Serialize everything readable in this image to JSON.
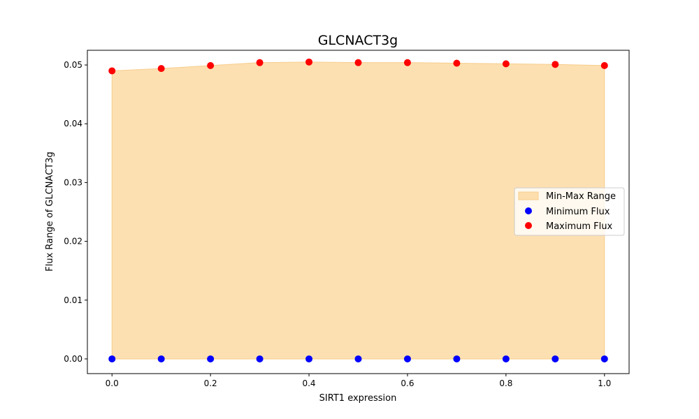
{
  "chart_data": {
    "type": "scatter",
    "title": "GLCNACT3g",
    "xlabel": "SIRT1 expression",
    "ylabel": "Flux Range of GLCNACT3g",
    "x": [
      0.0,
      0.1,
      0.2,
      0.3,
      0.4,
      0.5,
      0.6,
      0.7,
      0.8,
      0.9,
      1.0
    ],
    "xlim": [
      -0.05,
      1.05
    ],
    "ylim": [
      -0.0025,
      0.0525
    ],
    "xticks": [
      0.0,
      0.2,
      0.4,
      0.6,
      0.8,
      1.0
    ],
    "xtick_labels": [
      "0.0",
      "0.2",
      "0.4",
      "0.6",
      "0.8",
      "1.0"
    ],
    "yticks": [
      0.0,
      0.01,
      0.02,
      0.03,
      0.04,
      0.05
    ],
    "ytick_labels": [
      "0.00",
      "0.01",
      "0.02",
      "0.03",
      "0.04",
      "0.05"
    ],
    "grid": false,
    "legend_position": "center-right",
    "fill": {
      "name": "Min-Max Range",
      "lower": [
        0,
        0,
        0,
        0,
        0,
        0,
        0,
        0,
        0,
        0,
        0
      ],
      "upper": [
        0.049,
        0.0494,
        0.0499,
        0.0504,
        0.0505,
        0.0504,
        0.0504,
        0.0503,
        0.0502,
        0.0501,
        0.0499
      ],
      "color": "#fcd697",
      "edge_color": "#f6cd8c"
    },
    "series": [
      {
        "name": "Minimum Flux",
        "color": "#0000ff",
        "values": [
          0,
          0,
          0,
          0,
          0,
          0,
          0,
          0,
          0,
          0,
          0
        ]
      },
      {
        "name": "Maximum Flux",
        "color": "#ff0000",
        "values": [
          0.049,
          0.0494,
          0.0499,
          0.0504,
          0.0505,
          0.0504,
          0.0504,
          0.0503,
          0.0502,
          0.0501,
          0.0499
        ]
      }
    ]
  }
}
